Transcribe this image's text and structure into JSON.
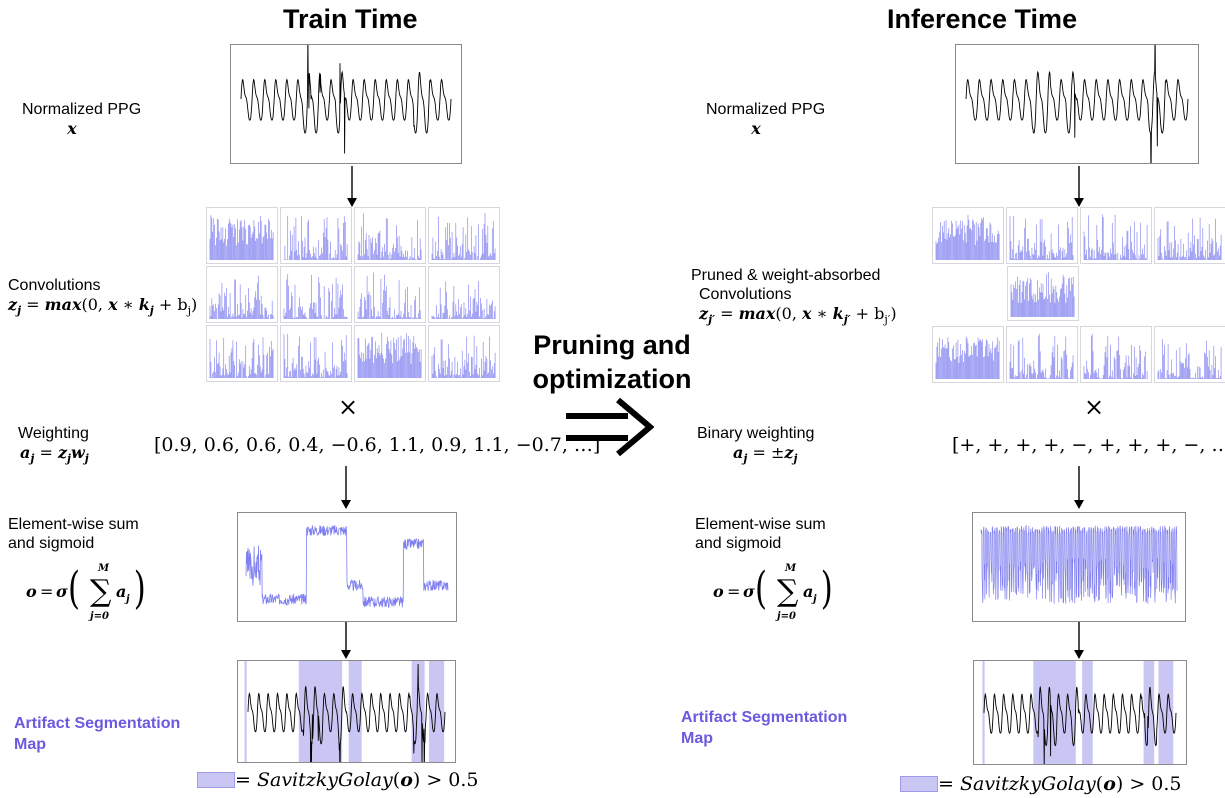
{
  "left": {
    "title": "Train Time",
    "ppg_label": "Normalized PPG",
    "ppg_var": "x",
    "conv_label": "Convolutions",
    "conv_eq_lhs": "z",
    "conv_eq_sub": "j",
    "conv_eq": " = max(0, x ∗ k",
    "conv_eq_tail": " + b",
    "conv_eq_end": ")",
    "times": "×",
    "weighting_label": "Weighting",
    "weighting_eq": "a_j = z_j w_j",
    "weights": "[0.9, 0.6, 0.6, 0.4, −0.6, 1.1, 0.9, 1.1, −0.7, …]",
    "sum_label_1": "Element-wise sum",
    "sum_label_2": "and sigmoid",
    "seg_label_1": "Artifact Segmentation",
    "seg_label_2": "Map",
    "legend_eq": "= SavitzkyGolay(o) > 0.5"
  },
  "right": {
    "title": "Inference Time",
    "ppg_label": "Normalized PPG",
    "ppg_var": "x",
    "conv_label_1": "Pruned & weight-absorbed",
    "conv_label_2": "Convolutions",
    "times": "×",
    "weighting_label": "Binary weighting",
    "weighting_eq": "a_j = ±z_j",
    "weights": "[+, +, +, +, −, +, +, +, −, …]",
    "sum_label_1": "Element-wise sum",
    "sum_label_2": "and sigmoid",
    "seg_label_1": "Artifact Segmentation",
    "seg_label_2": "Map",
    "legend_eq": "= SavitzkyGolay(o) > 0.5"
  },
  "center": {
    "label_1": "Pruning and",
    "label_2": "optimization",
    "arrow": "⇒"
  },
  "colors": {
    "accent": "#6a5ae0",
    "signal": "#000000",
    "conv": "#7f7ff0",
    "highlight": "#c9c6f4"
  }
}
